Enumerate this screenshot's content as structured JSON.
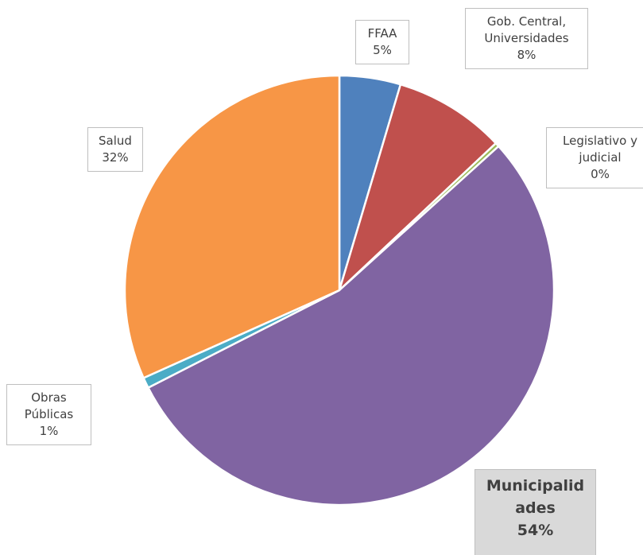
{
  "chart_data": {
    "type": "pie",
    "categories": [
      "FFAA",
      "Gob. Central, Universidades",
      "Legislativo y judicial",
      "Municipalidades",
      "Obras Públicas",
      "Salud"
    ],
    "values": [
      4.6,
      8.4,
      0.3,
      54.2,
      0.8,
      31.7
    ],
    "value_labels": [
      "5%",
      "8%",
      "0%",
      "54%",
      "1%",
      "32%"
    ],
    "colors": [
      "#4f81bd",
      "#c0504d",
      "#9bbb59",
      "#8064a2",
      "#4bacc6",
      "#f79646"
    ]
  }
}
